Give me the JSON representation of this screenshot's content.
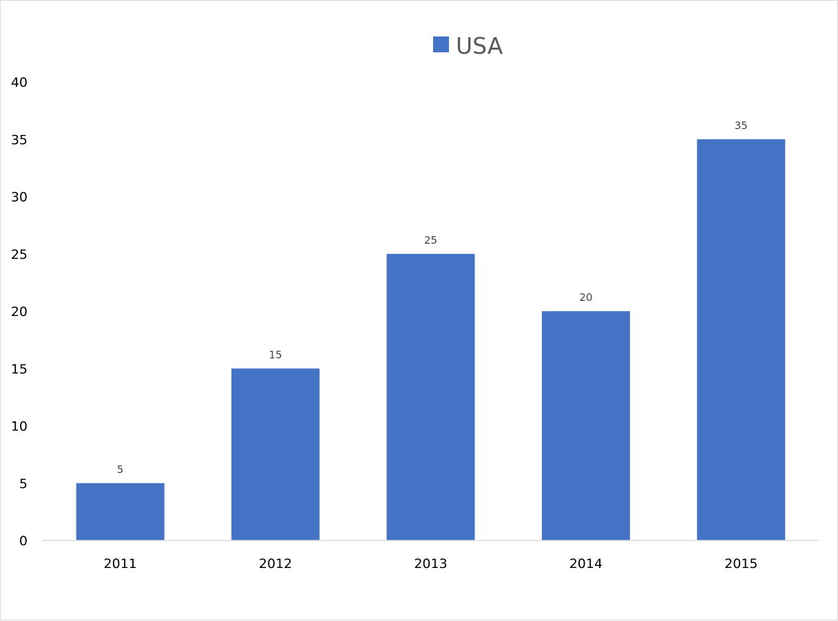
{
  "chart_data": {
    "type": "bar",
    "title": "",
    "xlabel": "",
    "ylabel": "",
    "categories": [
      "2011",
      "2012",
      "2013",
      "2014",
      "2015"
    ],
    "series": [
      {
        "name": "USA",
        "values": [
          5,
          15,
          25,
          20,
          35
        ],
        "color": "#4472C4"
      }
    ],
    "ylim": [
      0,
      40
    ],
    "yticks": [
      "0",
      "5",
      "10",
      "15",
      "20",
      "25",
      "30",
      "35",
      "40"
    ],
    "grid": false,
    "legend": "top-center",
    "data_labels": true,
    "axis_color": "#d9d9d9"
  }
}
